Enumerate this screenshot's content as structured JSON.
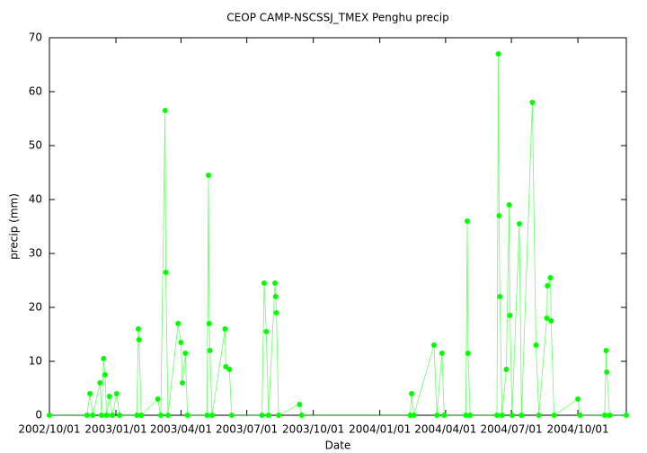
{
  "chart_data": {
    "type": "line",
    "title": "CEOP CAMP-NSCSSJ_TMEX Penghu  precip",
    "x_label": "Date",
    "y_label": "precip (mm)",
    "x": [
      "2002/10/01",
      "2002/11/22",
      "2002/11/26",
      "2002/11/30",
      "2002/12/10",
      "2002/12/12",
      "2002/12/15",
      "2002/12/17",
      "2002/12/19",
      "2002/12/23",
      "2002/12/27",
      "2003/01/02",
      "2003/01/06",
      "2003/01/30",
      "2003/02/01",
      "2003/02/02",
      "2003/02/05",
      "2003/02/28",
      "2003/03/04",
      "2003/03/10",
      "2003/03/11",
      "2003/03/14",
      "2003/03/28",
      "2003/04/01",
      "2003/04/03",
      "2003/04/07",
      "2003/04/10",
      "2003/05/07",
      "2003/05/09",
      "2003/05/10",
      "2003/05/11",
      "2003/05/14",
      "2003/06/01",
      "2003/06/02",
      "2003/06/07",
      "2003/06/10",
      "2003/07/22",
      "2003/07/25",
      "2003/07/28",
      "2003/07/31",
      "2003/08/09",
      "2003/08/10",
      "2003/08/11",
      "2003/08/14",
      "2003/09/12",
      "2003/09/15",
      "2004/02/12",
      "2004/02/14",
      "2004/02/17",
      "2004/03/16",
      "2004/03/20",
      "2004/03/27",
      "2004/03/30",
      "2004/04/29",
      "2004/05/01",
      "2004/05/02",
      "2004/05/05",
      "2004/06/11",
      "2004/06/13",
      "2004/06/14",
      "2004/06/15",
      "2004/06/18",
      "2004/06/24",
      "2004/06/28",
      "2004/06/29",
      "2004/07/02",
      "2004/07/12",
      "2004/07/15",
      "2004/07/30",
      "2004/08/04",
      "2004/08/08",
      "2004/08/19",
      "2004/08/20",
      "2004/08/24",
      "2004/08/25",
      "2004/08/29",
      "2004/10/01",
      "2004/10/04",
      "2004/11/07",
      "2004/11/09",
      "2004/11/10",
      "2004/11/14",
      "2004/12/07"
    ],
    "series": [
      {
        "name": "precip",
        "color": "#00ff00",
        "values": [
          0,
          0,
          4,
          0,
          6,
          0,
          10.5,
          7.5,
          0,
          3.5,
          0,
          4,
          0,
          0,
          16,
          14,
          0,
          3,
          0,
          56.5,
          26.5,
          0,
          17,
          13.5,
          6,
          11.5,
          0,
          0,
          44.5,
          17,
          12,
          0,
          16,
          9,
          8.5,
          0,
          0,
          24.5,
          15.5,
          0,
          24.5,
          22,
          19,
          0,
          2,
          0,
          0,
          4,
          0,
          13,
          0,
          11.5,
          0,
          0,
          36,
          11.5,
          0,
          0,
          67,
          37,
          22,
          0,
          8.5,
          39,
          18.5,
          0,
          35.5,
          0,
          58,
          13,
          0,
          18,
          24,
          25.5,
          17.5,
          0,
          3,
          0,
          0,
          12,
          8,
          0,
          0
        ]
      }
    ],
    "xlim": [
      "2002/10/01",
      "2004/12/07"
    ],
    "xticks": [
      "2002/10/01",
      "2003/01/01",
      "2003/04/01",
      "2003/07/01",
      "2003/10/01",
      "2004/01/01",
      "2004/04/01",
      "2004/07/01",
      "2004/10/01"
    ],
    "ylim": [
      0,
      70
    ],
    "yticks": [
      0,
      10,
      20,
      30,
      40,
      50,
      60,
      70
    ]
  }
}
